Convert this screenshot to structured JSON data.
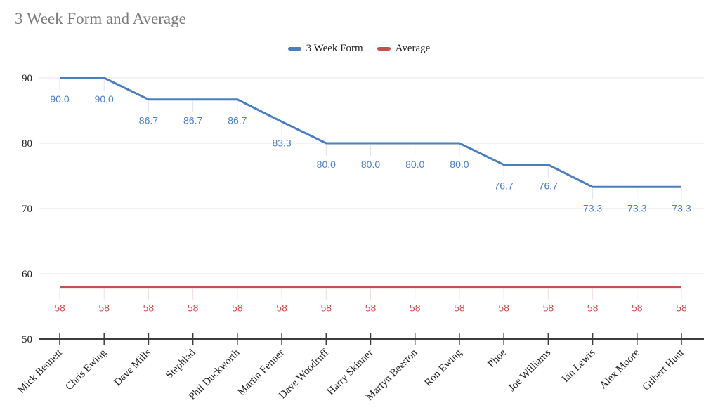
{
  "title": "3 Week Form and Average",
  "legend": {
    "items": [
      {
        "label": "3 Week Form",
        "color": "#4a7ebc"
      },
      {
        "label": "Average",
        "color": "#c4504d"
      }
    ]
  },
  "chart_data": {
    "type": "line",
    "title": "3 Week Form and Average",
    "xlabel": "",
    "ylabel": "",
    "grid": true,
    "legend_position": "top",
    "ylim": [
      50,
      95
    ],
    "yticks": [
      50,
      60,
      70,
      80,
      90
    ],
    "categories": [
      "Mick Bennett",
      "Chris Ewing",
      "Dave Mills",
      "Stephlad",
      "Phil Duckworth",
      "Martin Fenner",
      "Dave Woodruff",
      "Harry Skinner",
      "Martyn Beeston",
      "Ron Ewing",
      "Phoe",
      "Joe Williams",
      "Ian Lewis",
      "Alex Moore",
      "Gilbert Hunt"
    ],
    "series": [
      {
        "name": "3 Week Form",
        "color": "#4a7ebc",
        "label_color": "#4a7fc0",
        "stub_color": "#dde5f1",
        "values": [
          90.0,
          90.0,
          86.7,
          86.7,
          86.7,
          83.3,
          80.0,
          80.0,
          80.0,
          80.0,
          76.7,
          76.7,
          73.3,
          73.3,
          73.3
        ],
        "labels": [
          "90.0",
          "90.0",
          "86.7",
          "86.7",
          "86.7",
          "83.3",
          "80.0",
          "80.0",
          "80.0",
          "80.0",
          "76.7",
          "76.7",
          "73.3",
          "73.3",
          "73.3"
        ]
      },
      {
        "name": "Average",
        "color": "#c4504d",
        "label_color": "#c9514d",
        "stub_color": "#f2dddd",
        "values": [
          58,
          58,
          58,
          58,
          58,
          58,
          58,
          58,
          58,
          58,
          58,
          58,
          58,
          58,
          58
        ],
        "labels": [
          "58",
          "58",
          "58",
          "58",
          "58",
          "58",
          "58",
          "58",
          "58",
          "58",
          "58",
          "58",
          "58",
          "58",
          "58"
        ]
      }
    ],
    "colors": {
      "gridline": "#e6e6e6",
      "axis_line": "#3d3d3d",
      "tick_mark": "#3d3d3d",
      "y_tick_label": "#212121",
      "x_category_label": "#1f1f1f"
    }
  }
}
